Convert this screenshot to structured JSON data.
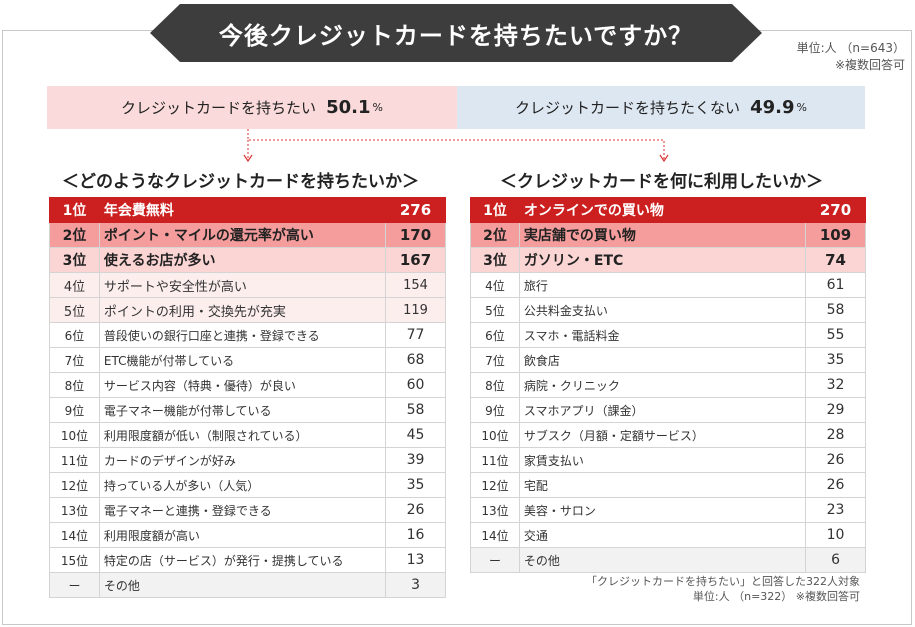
{
  "header": {
    "title": "今後クレジットカードを持ちたいですか？",
    "unit": "単位:人 （n=643）",
    "note": "※複数回答可"
  },
  "summary": {
    "want": {
      "label": "クレジットカードを持ちたい",
      "value": "50.1",
      "unit": "%"
    },
    "dont_want": {
      "label": "クレジットカードを持ちたくない",
      "value": "49.9",
      "unit": "%"
    }
  },
  "colors": {
    "rank1": "#cc1f1f",
    "rank2": "#f59c9c",
    "rank3": "#fbd4d4",
    "want_bg": "#fadada",
    "dont_want_bg": "#dde7f2",
    "banner": "#3d3d3d"
  },
  "chart_data": [
    {
      "type": "table",
      "title": "＜どのようなクレジットカードを持ちたいか＞",
      "rows": [
        {
          "rank": "1位",
          "item": "年会費無料",
          "value": "276"
        },
        {
          "rank": "2位",
          "item": "ポイント・マイルの還元率が高い",
          "value": "170"
        },
        {
          "rank": "3位",
          "item": "使えるお店が多い",
          "value": "167"
        },
        {
          "rank": "4位",
          "item": "サポートや安全性が高い",
          "value": "154"
        },
        {
          "rank": "5位",
          "item": "ポイントの利用・交換先が充実",
          "value": "119"
        },
        {
          "rank": "6位",
          "item": "普段使いの銀行口座と連携・登録できる",
          "value": "77"
        },
        {
          "rank": "7位",
          "item": "ETC機能が付帯している",
          "value": "68"
        },
        {
          "rank": "8位",
          "item": "サービス内容（特典・優待）が良い",
          "value": "60"
        },
        {
          "rank": "9位",
          "item": "電子マネー機能が付帯している",
          "value": "58"
        },
        {
          "rank": "10位",
          "item": "利用限度額が低い（制限されている）",
          "value": "45"
        },
        {
          "rank": "11位",
          "item": "カードのデザインが好み",
          "value": "39"
        },
        {
          "rank": "12位",
          "item": "持っている人が多い（人気）",
          "value": "35"
        },
        {
          "rank": "13位",
          "item": "電子マネーと連携・登録できる",
          "value": "26"
        },
        {
          "rank": "14位",
          "item": "利用限度額が高い",
          "value": "16"
        },
        {
          "rank": "15位",
          "item": "特定の店（サービス）が発行・提携している",
          "value": "13"
        },
        {
          "rank": "ー",
          "item": "その他",
          "value": "3"
        }
      ]
    },
    {
      "type": "table",
      "title": "＜クレジットカードを何に利用したいか＞",
      "rows": [
        {
          "rank": "1位",
          "item": "オンラインでの買い物",
          "value": "270"
        },
        {
          "rank": "2位",
          "item": "実店舗での買い物",
          "value": "109"
        },
        {
          "rank": "3位",
          "item": "ガソリン・ETC",
          "value": "74"
        },
        {
          "rank": "4位",
          "item": "旅行",
          "value": "61"
        },
        {
          "rank": "5位",
          "item": "公共料金支払い",
          "value": "58"
        },
        {
          "rank": "6位",
          "item": "スマホ・電話料金",
          "value": "55"
        },
        {
          "rank": "7位",
          "item": "飲食店",
          "value": "35"
        },
        {
          "rank": "8位",
          "item": "病院・クリニック",
          "value": "32"
        },
        {
          "rank": "9位",
          "item": "スマホアプリ（課金）",
          "value": "29"
        },
        {
          "rank": "10位",
          "item": "サブスク（月額・定額サービス）",
          "value": "28"
        },
        {
          "rank": "11位",
          "item": "家賃支払い",
          "value": "26"
        },
        {
          "rank": "12位",
          "item": "宅配",
          "value": "26"
        },
        {
          "rank": "13位",
          "item": "美容・サロン",
          "value": "23"
        },
        {
          "rank": "14位",
          "item": "交通",
          "value": "10"
        },
        {
          "rank": "ー",
          "item": "その他",
          "value": "6"
        }
      ]
    }
  ],
  "footer": {
    "target": "「クレジットカードを持ちたい」と回答した322人対象",
    "unit": "単位:人 （n=322） ※複数回答可"
  }
}
